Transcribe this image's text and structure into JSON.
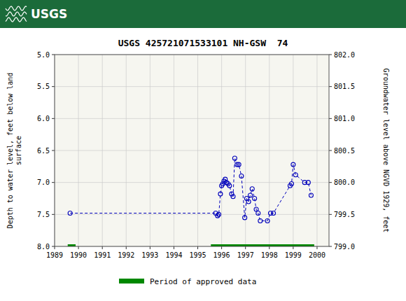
{
  "chart_data": {
    "type": "line",
    "title": "USGS 425721071533101 NH-GSW  74",
    "annotations": [
      "USGS"
    ],
    "ylabel": "Depth to water level, feet below land\nsurface",
    "y2label": "Groundwater level above NGVD 1929, feet",
    "xlim": [
      1989.0,
      2000.5
    ],
    "xticks": [
      1989,
      1990,
      1991,
      1992,
      1993,
      1994,
      1995,
      1996,
      1997,
      1998,
      1999,
      2000
    ],
    "ylim": [
      8.0,
      5.0
    ],
    "yticks": [
      {
        "value": 5.0,
        "label": "5.0"
      },
      5.5,
      {
        "value": 6.0,
        "label": "6.0"
      },
      6.5,
      {
        "value": 7.0,
        "label": "7.0"
      },
      7.5,
      {
        "value": 8.0,
        "label": "8.0"
      }
    ],
    "y2lim": [
      799.0,
      802.0
    ],
    "y2ticks": [
      {
        "value": 802.0,
        "label": "802.0"
      },
      801.5,
      {
        "value": 801.0,
        "label": "801.0"
      },
      800.5,
      {
        "value": 800.0,
        "label": "800.0"
      },
      799.5,
      {
        "value": 799.0,
        "label": "799.0"
      }
    ],
    "grid": true,
    "series": [
      {
        "type": "line",
        "color": "#0000bb",
        "marker": "circle",
        "line_style": "dashed",
        "x": [
          1989.65,
          1995.75,
          1995.83,
          1995.88,
          1995.95,
          1996.0,
          1996.05,
          1996.1,
          1996.15,
          1996.2,
          1996.27,
          1996.33,
          1996.42,
          1996.48,
          1996.55,
          1996.65,
          1996.72,
          1996.83,
          1996.97,
          1997.05,
          1997.13,
          1997.2,
          1997.28,
          1997.38,
          1997.45,
          1997.53,
          1997.62,
          1997.92,
          1998.05,
          1998.17,
          1998.87,
          1998.93,
          1999.0,
          1999.1,
          1999.48,
          1999.63,
          1999.75
        ],
        "values": [
          7.48,
          7.48,
          7.52,
          7.5,
          7.18,
          7.05,
          7.02,
          6.98,
          6.95,
          7.0,
          7.02,
          7.05,
          7.18,
          7.22,
          6.62,
          6.72,
          6.72,
          6.9,
          7.55,
          7.25,
          7.3,
          7.2,
          7.1,
          7.25,
          7.42,
          7.48,
          7.6,
          7.6,
          7.48,
          7.48,
          7.05,
          7.02,
          6.72,
          6.88,
          7.0,
          7.0,
          7.2
        ]
      },
      {
        "type": "span",
        "name": "Period of approved data",
        "color": "#008800",
        "y": 8.0,
        "values": [
          [
            1989.55,
            1989.88
          ],
          [
            1995.55,
            1999.88
          ]
        ]
      }
    ]
  }
}
